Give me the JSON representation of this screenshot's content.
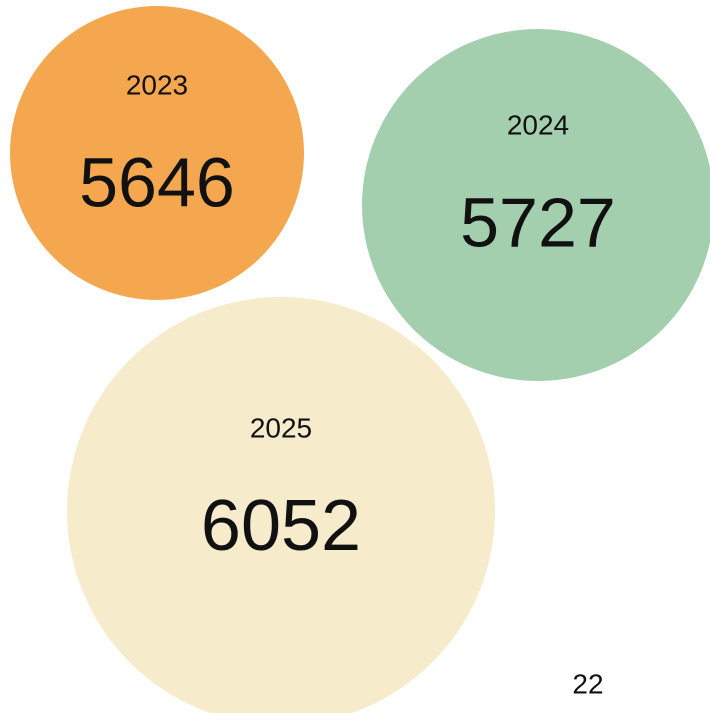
{
  "items": [
    {
      "year": "2023",
      "value": 5646,
      "color": "#f4a74f"
    },
    {
      "year": "2024",
      "value": 5727,
      "color": "#a3cfae"
    },
    {
      "year": "2025",
      "value": 6052,
      "color": "#f6ebcb"
    }
  ],
  "page_number": "22"
}
